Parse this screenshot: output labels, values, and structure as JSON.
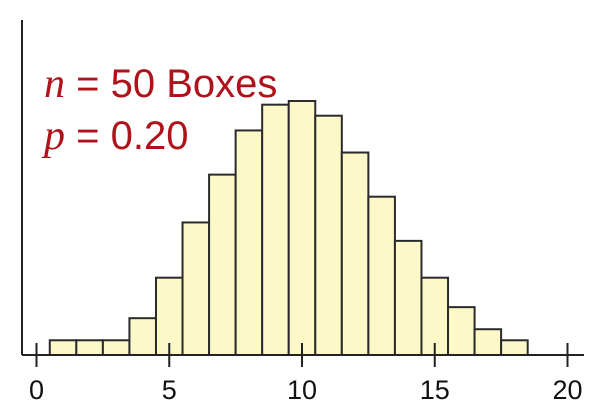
{
  "chart_data": {
    "type": "bar",
    "title": "",
    "xlabel": "",
    "ylabel": "",
    "annotations": [
      {
        "variable": "n",
        "text": " = 50 Boxes"
      },
      {
        "variable": "p",
        "text": " = 0.20"
      }
    ],
    "x": [
      1,
      2,
      3,
      4,
      5,
      6,
      7,
      8,
      9,
      10,
      11,
      12,
      13,
      14,
      15,
      16,
      17,
      18
    ],
    "values": [
      0.4,
      0.4,
      0.4,
      1.0,
      2.1,
      3.6,
      4.9,
      6.1,
      6.8,
      6.9,
      6.5,
      5.5,
      4.3,
      3.1,
      2.1,
      1.3,
      0.7,
      0.4
    ],
    "xlim": [
      -0.5,
      20.5
    ],
    "ylim": [
      0,
      9.1
    ],
    "xticks": [
      0,
      5,
      10,
      15,
      20
    ],
    "xtick_labels": [
      "0",
      "5",
      "10",
      "15",
      "20"
    ],
    "grid": false,
    "legend": false
  },
  "colors": {
    "bar_fill": "#fdf8c8",
    "bar_stroke": "#2b2b2b",
    "axis": "#222222",
    "annotation": "#b0121b"
  }
}
